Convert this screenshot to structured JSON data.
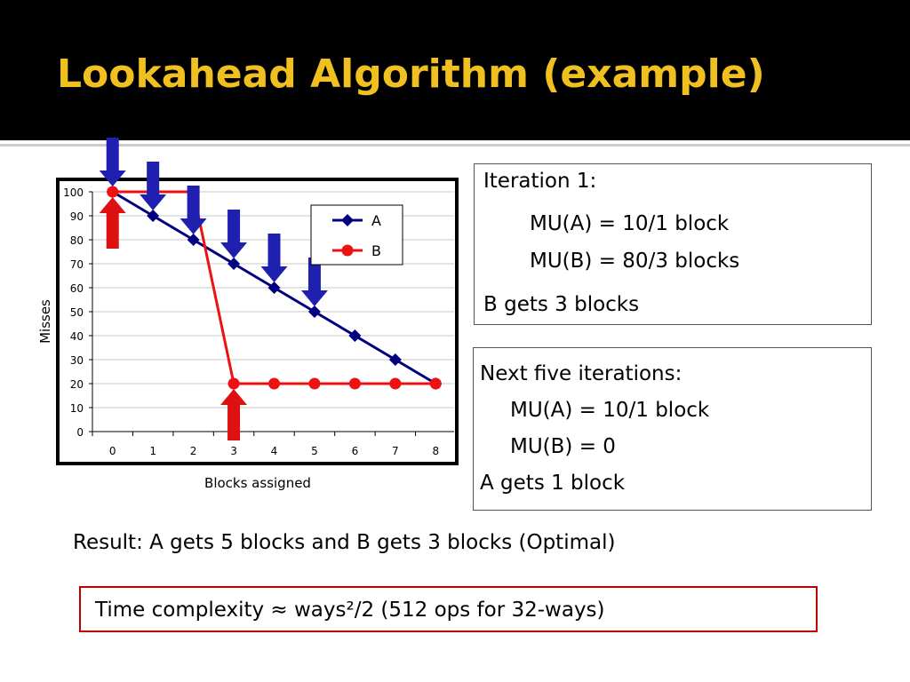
{
  "slide": {
    "title": "Lookahead Algorithm (example)",
    "colors": {
      "title_bg": "#000000",
      "title_text": "#f0c020",
      "series_a": "#000080",
      "series_b": "#ee1111",
      "arrow_a": "#2020b0",
      "arrow_b": "#dd1111",
      "complexity_border": "#c00000"
    }
  },
  "chart_data": {
    "type": "line",
    "xlabel": "Blocks assigned",
    "ylabel": "Misses",
    "x": [
      0,
      1,
      2,
      3,
      4,
      5,
      6,
      7,
      8
    ],
    "xlim": [
      0,
      8
    ],
    "ylim": [
      0,
      100
    ],
    "yticks": [
      0,
      10,
      20,
      30,
      40,
      50,
      60,
      70,
      80,
      90,
      100
    ],
    "grid": true,
    "legend_position": "top-right",
    "series": [
      {
        "name": "A",
        "marker": "diamond",
        "color": "#000080",
        "values": [
          100,
          90,
          80,
          70,
          60,
          50,
          40,
          30,
          20
        ]
      },
      {
        "name": "B",
        "marker": "circle",
        "color": "#ee1111",
        "values": [
          100,
          100,
          100,
          20,
          20,
          20,
          20,
          20,
          20
        ]
      }
    ],
    "annotations": {
      "down_arrows_series_a_at_x": [
        0,
        1,
        2,
        3,
        4,
        5
      ],
      "up_arrows_series_b_at_x": [
        0,
        3
      ]
    }
  },
  "iteration1": {
    "heading": "Iteration 1:",
    "mu_a": "MU(A) = 10/1 block",
    "mu_b": "MU(B) = 80/3 blocks",
    "result": "B gets 3 blocks"
  },
  "next_iterations": {
    "heading": "Next five iterations:",
    "mu_a": "MU(A) = 10/1 block",
    "mu_b": "MU(B) = 0",
    "result": "A gets 1 block"
  },
  "result_line": "Result: A gets 5 blocks and B gets 3 blocks (Optimal)",
  "complexity_line": "Time complexity ≈ ways²/2 (512 ops for 32-ways)"
}
